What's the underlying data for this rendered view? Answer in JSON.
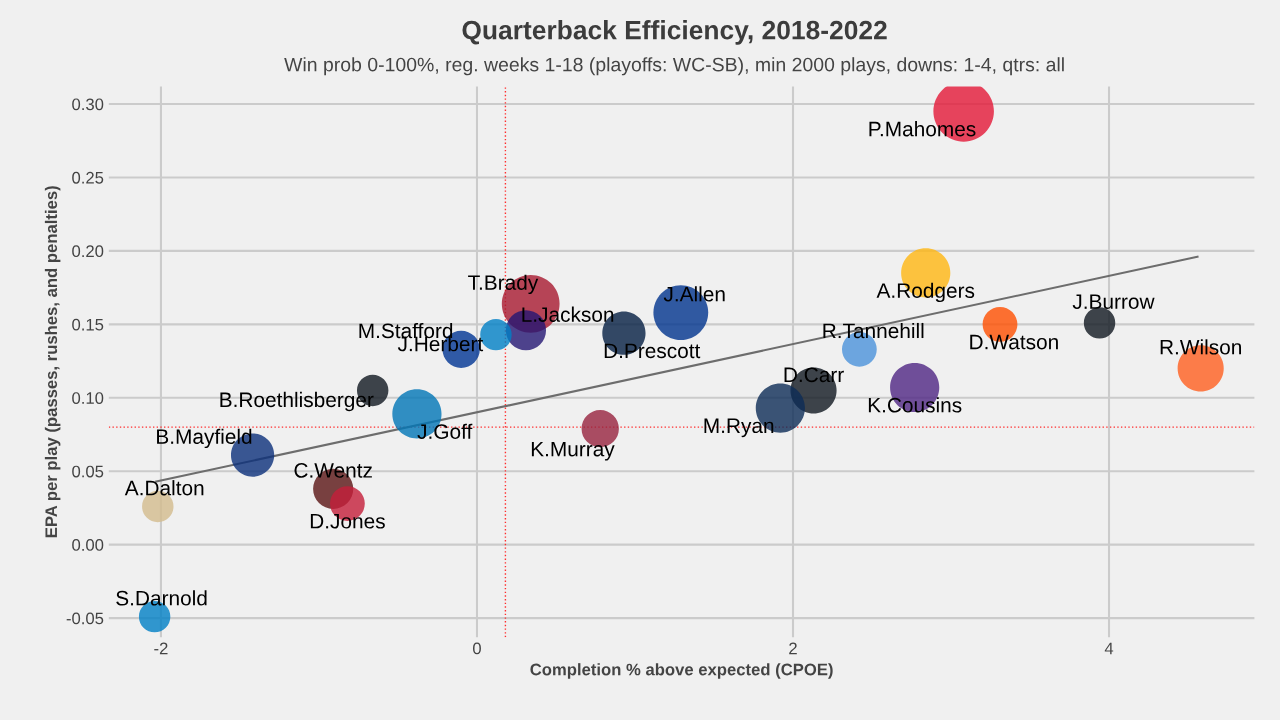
{
  "chart_data": {
    "type": "bubble",
    "title": "Quarterback Efficiency, 2018-2022",
    "subtitle": "Win prob 0-100%, reg. weeks 1-18 (playoffs: WC-SB), min 2000 plays, downs: 1-4, qtrs: all",
    "xlabel": "Completion % above expected (CPOE)",
    "ylabel": "EPA per play (passes, rushes, and penalties)",
    "xlim": [
      -2.33,
      4.92
    ],
    "ylim": [
      -0.063,
      0.312
    ],
    "xticks": [
      -2,
      0,
      2,
      4
    ],
    "yticks": [
      -0.05,
      {
        "value": 0,
        "label": "0.00"
      },
      0.05,
      {
        "value": 0.1,
        "label": "0.10"
      },
      0.15,
      {
        "value": 0.2,
        "label": "0.20"
      },
      0.25,
      {
        "value": 0.3,
        "label": "0.30"
      }
    ],
    "grid": true,
    "legend": false,
    "series": [
      {
        "x": [
          3.08,
          2.84,
          3.94,
          3.31,
          4.58,
          2.42,
          2.77,
          2.13,
          1.92,
          1.29,
          0.93,
          0.78,
          0.34,
          0.31,
          0.12,
          -0.1,
          -0.66,
          -0.38,
          -1.42,
          -0.91,
          -0.82,
          -2.02,
          -2.04
        ],
        "values": [
          0.295,
          0.185,
          0.151,
          0.15,
          0.12,
          0.133,
          0.107,
          0.105,
          0.093,
          0.158,
          0.144,
          0.079,
          0.164,
          0.146,
          0.143,
          0.133,
          0.105,
          0.089,
          0.061,
          0.038,
          0.028,
          0.026,
          -0.049
        ],
        "sizes": [
          1.0,
          0.66,
          0.27,
          0.33,
          0.58,
          0.33,
          0.66,
          0.58,
          0.66,
          0.82,
          0.51,
          0.38,
          0.91,
          0.44,
          0.27,
          0.38,
          0.27,
          0.66,
          0.51,
          0.44,
          0.33,
          0.27,
          0.27
        ],
        "colors": [
          "#e31837",
          "#ffb612",
          "#101820",
          "#ff4f00",
          "#ff5f1f",
          "#4b92db",
          "#4f2683",
          "#101820",
          "#0c2c56",
          "#00338d",
          "#041e42",
          "#97233f",
          "#a71930",
          "#241773",
          "#0080c6",
          "#003594",
          "#101820",
          "#0076b6",
          "#0b2f7a",
          "#5a1414",
          "#c41e3a",
          "#d3bc8d",
          "#0080c6"
        ]
      },
      {
        "type": "line",
        "color": "#6d6d6d",
        "x": [
          -2.03,
          4.56
        ],
        "values": [
          0.043,
          0.196
        ]
      }
    ],
    "ref_lines": [
      {
        "axis": "x",
        "value": 0.18,
        "color": "#ff2d2d",
        "line_style": "dotted"
      },
      {
        "axis": "y",
        "value": 0.08,
        "color": "#ff2d2d",
        "line_style": "dotted"
      }
    ],
    "annotations": [
      {
        "text": "P.Mahomes",
        "x": 3.08,
        "y": 0.295
      },
      {
        "text": "A.Rodgers",
        "x": 2.84,
        "y": 0.185
      },
      {
        "text": "J.Burrow",
        "x": 3.94,
        "y": 0.151
      },
      {
        "text": "D.Watson",
        "x": 3.31,
        "y": 0.15
      },
      {
        "text": "R.Wilson",
        "x": 4.58,
        "y": 0.12
      },
      {
        "text": "R.Tannehill",
        "x": 2.42,
        "y": 0.133
      },
      {
        "text": "K.Cousins",
        "x": 2.77,
        "y": 0.107
      },
      {
        "text": "D.Carr",
        "x": 2.13,
        "y": 0.105
      },
      {
        "text": "M.Ryan",
        "x": 1.92,
        "y": 0.093
      },
      {
        "text": "J.Allen",
        "x": 1.29,
        "y": 0.158
      },
      {
        "text": "D.Prescott",
        "x": 0.93,
        "y": 0.144
      },
      {
        "text": "K.Murray",
        "x": 0.78,
        "y": 0.079
      },
      {
        "text": "T.Brady",
        "x": 0.34,
        "y": 0.164
      },
      {
        "text": "L.Jackson",
        "x": 0.31,
        "y": 0.146
      },
      {
        "text": "J.Herbert",
        "x": 0.12,
        "y": 0.143
      },
      {
        "text": "M.Stafford",
        "x": -0.1,
        "y": 0.133
      },
      {
        "text": "B.Roethlisberger",
        "x": -0.66,
        "y": 0.105
      },
      {
        "text": "J.Goff",
        "x": -0.38,
        "y": 0.089
      },
      {
        "text": "B.Mayfield",
        "x": -1.42,
        "y": 0.061
      },
      {
        "text": "C.Wentz",
        "x": -0.91,
        "y": 0.038
      },
      {
        "text": "D.Jones",
        "x": -0.82,
        "y": 0.028
      },
      {
        "text": "A.Dalton",
        "x": -2.02,
        "y": 0.026
      },
      {
        "text": "S.Darnold",
        "x": -2.04,
        "y": -0.049
      }
    ]
  }
}
